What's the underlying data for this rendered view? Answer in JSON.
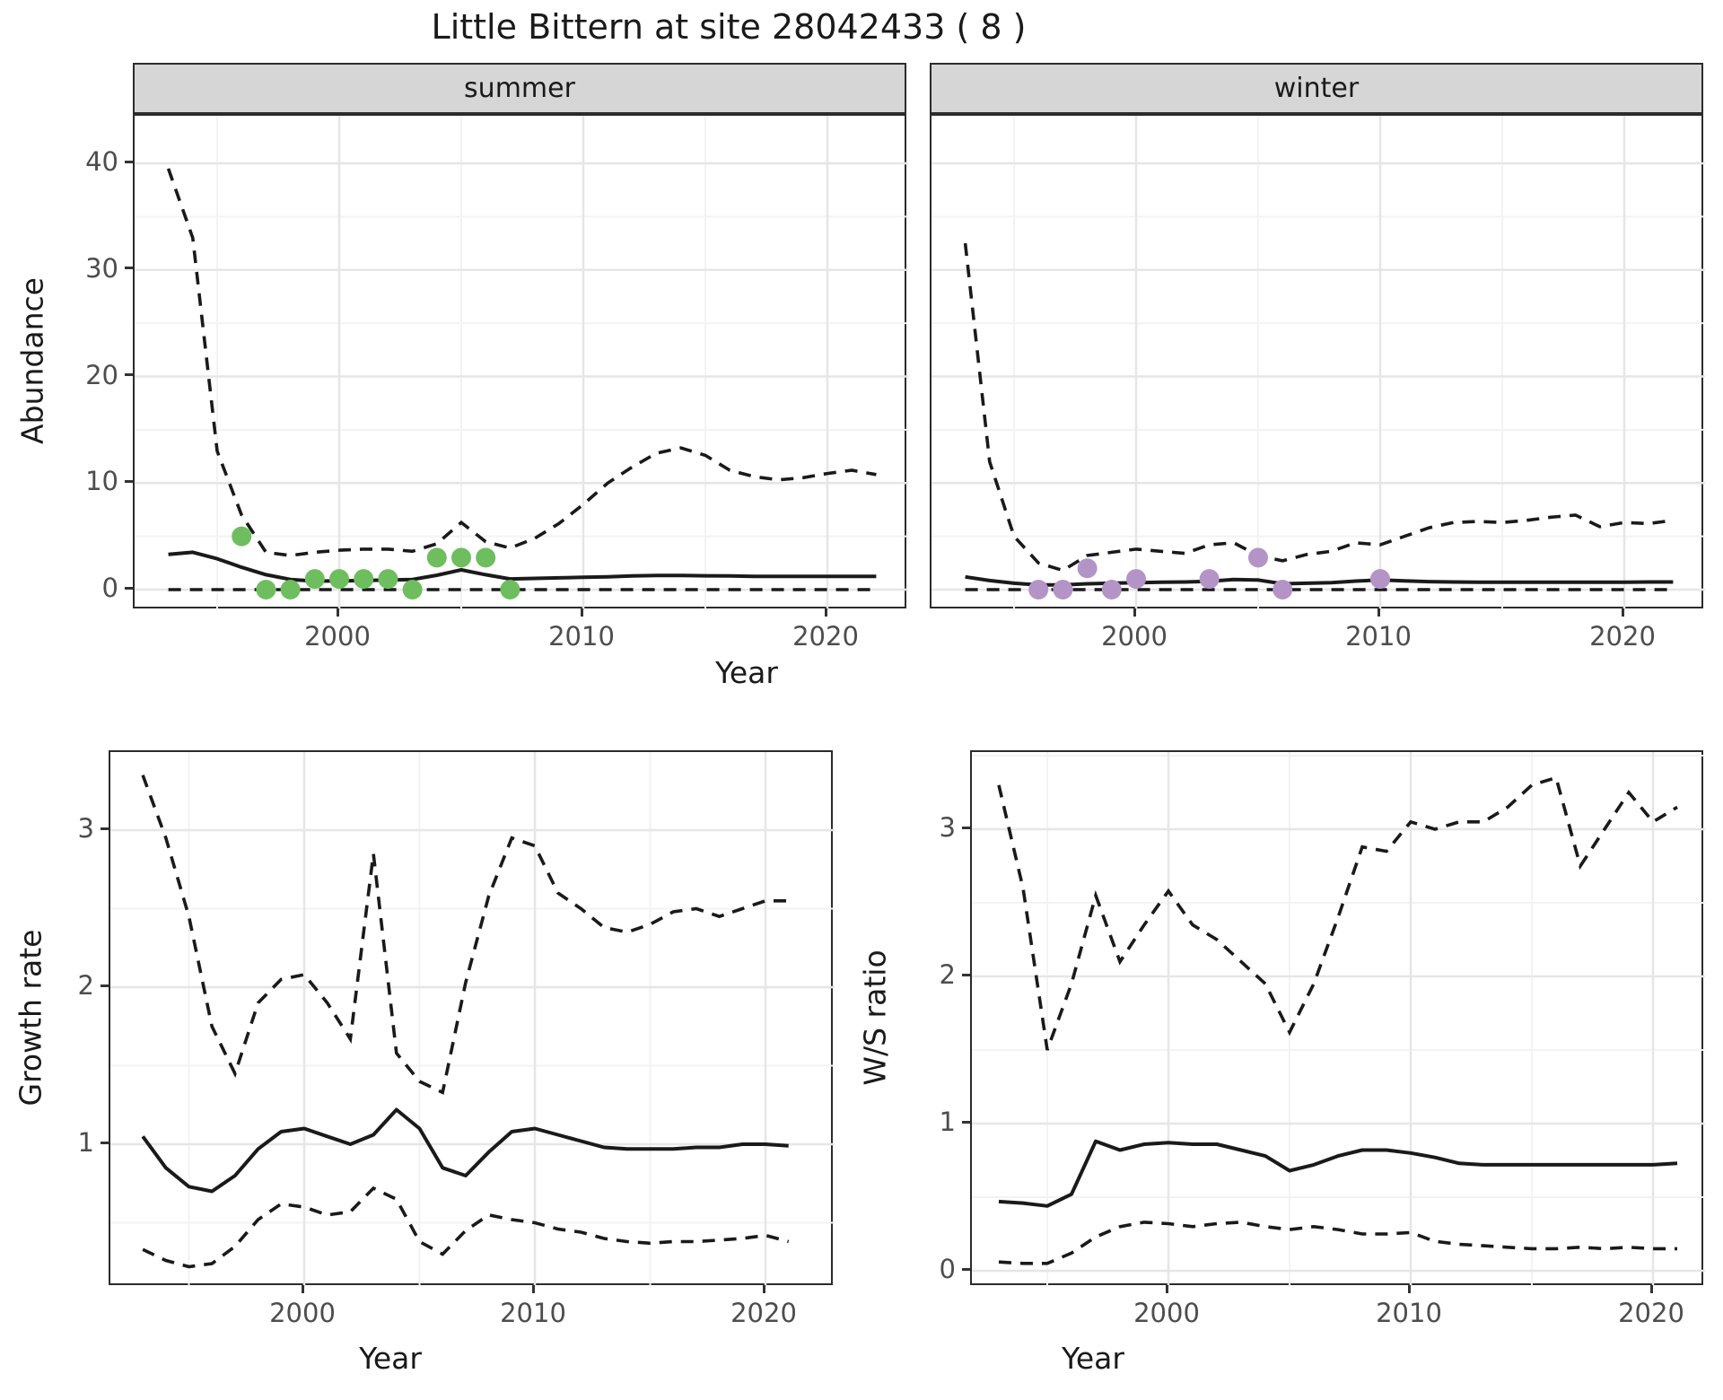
{
  "title": "Little Bittern at site 28042433 ( 8 )",
  "colors": {
    "summer_point": "#6ebe5f",
    "winter_point": "#b494c6",
    "line": "#1a1a1a",
    "strip_bg": "#d6d6d6",
    "grid_major": "#e6e6e6",
    "grid_minor": "#f3f3f3",
    "panel_border": "#2b2b2b",
    "axis_text": "#4d4d4d"
  },
  "chart_data": [
    {
      "type": "line",
      "id": "abundance-summer",
      "strip_label": "summer",
      "xlabel": "Year",
      "ylabel": "Abundance",
      "x_ticks": [
        "2000",
        "2010",
        "2020"
      ],
      "y_ticks": [
        "0",
        "10",
        "20",
        "30",
        "40"
      ],
      "xlim": [
        1991.5,
        2023.5
      ],
      "ylim": [
        0,
        44
      ],
      "grid": "on",
      "years": [
        1993,
        1994,
        1995,
        1996,
        1997,
        1998,
        1999,
        2000,
        2001,
        2002,
        2003,
        2004,
        2005,
        2006,
        2007,
        2008,
        2009,
        2010,
        2011,
        2012,
        2013,
        2014,
        2015,
        2016,
        2017,
        2018,
        2019,
        2020,
        2021,
        2022
      ],
      "median": [
        3.3,
        3.5,
        2.9,
        2.1,
        1.4,
        0.95,
        0.8,
        0.82,
        0.85,
        0.9,
        0.95,
        1.35,
        1.85,
        1.4,
        1.0,
        1.05,
        1.1,
        1.15,
        1.2,
        1.28,
        1.32,
        1.33,
        1.3,
        1.28,
        1.25,
        1.25,
        1.25,
        1.25,
        1.25,
        1.25
      ],
      "upper_ci": [
        39.5,
        33,
        13,
        7,
        3.5,
        3.2,
        3.5,
        3.7,
        3.8,
        3.8,
        3.6,
        4.3,
        6.3,
        4.5,
        3.9,
        4.8,
        6.2,
        8.0,
        10.0,
        11.5,
        12.8,
        13.3,
        12.6,
        11.2,
        10.6,
        10.3,
        10.5,
        10.9,
        11.2,
        10.8
      ],
      "lower_ci": [
        0,
        0,
        0,
        0,
        0,
        0,
        0,
        0,
        0,
        0,
        0,
        0,
        0,
        0,
        0,
        0,
        0,
        0,
        0,
        0,
        0,
        0,
        0,
        0,
        0,
        0,
        0,
        0,
        0,
        0
      ],
      "observations": {
        "years": [
          1996,
          1997,
          1998,
          1999,
          2000,
          2001,
          2002,
          2003,
          2004,
          2005,
          2006,
          2007
        ],
        "values": [
          5,
          0,
          0,
          1,
          1,
          1,
          1,
          0,
          3,
          3,
          3,
          0
        ]
      },
      "point_color": "#6ebe5f"
    },
    {
      "type": "line",
      "id": "abundance-winter",
      "strip_label": "winter",
      "xlabel": "Year",
      "ylabel": "Abundance",
      "x_ticks": [
        "2000",
        "2010",
        "2020"
      ],
      "y_ticks": [
        "0",
        "10",
        "20",
        "30",
        "40"
      ],
      "xlim": [
        1991.5,
        2023.5
      ],
      "ylim": [
        0,
        44
      ],
      "grid": "on",
      "years": [
        1993,
        1994,
        1995,
        1996,
        1997,
        1998,
        1999,
        2000,
        2001,
        2002,
        2003,
        2004,
        2005,
        2006,
        2007,
        2008,
        2009,
        2010,
        2011,
        2012,
        2013,
        2014,
        2015,
        2016,
        2017,
        2018,
        2019,
        2020,
        2021,
        2022
      ],
      "median": [
        1.2,
        0.85,
        0.6,
        0.45,
        0.45,
        0.55,
        0.6,
        0.65,
        0.7,
        0.72,
        0.78,
        0.95,
        0.9,
        0.55,
        0.6,
        0.65,
        0.8,
        0.9,
        0.82,
        0.75,
        0.72,
        0.7,
        0.7,
        0.7,
        0.7,
        0.7,
        0.7,
        0.7,
        0.72,
        0.72
      ],
      "upper_ci": [
        32.5,
        12,
        5,
        2.5,
        1.8,
        3.2,
        3.5,
        3.8,
        3.6,
        3.4,
        4.2,
        4.4,
        3.2,
        2.7,
        3.3,
        3.6,
        4.4,
        4.2,
        5.0,
        5.8,
        6.3,
        6.4,
        6.3,
        6.5,
        6.8,
        7.0,
        5.9,
        6.3,
        6.2,
        6.5
      ],
      "lower_ci": [
        0,
        0,
        0,
        0,
        0,
        0,
        0,
        0,
        0,
        0,
        0,
        0,
        0,
        0,
        0,
        0,
        0,
        0,
        0,
        0,
        0,
        0,
        0,
        0,
        0,
        0,
        0,
        0,
        0,
        0
      ],
      "observations": {
        "years": [
          1996,
          1997,
          1998,
          1999,
          2000,
          2003,
          2005,
          2006,
          2010
        ],
        "values": [
          0,
          0,
          2,
          0,
          1,
          1,
          3,
          0,
          1
        ]
      },
      "point_color": "#b494c6"
    },
    {
      "type": "line",
      "id": "growth-rate",
      "strip_label": "",
      "xlabel": "Year",
      "ylabel": "Growth rate",
      "x_ticks": [
        "2000",
        "2010",
        "2020"
      ],
      "y_ticks": [
        "1",
        "2",
        "3"
      ],
      "xlim": [
        1991.6,
        2023.0
      ],
      "ylim": [
        0.09,
        3.5
      ],
      "grid": "on",
      "years": [
        1993,
        1994,
        1995,
        1996,
        1997,
        1998,
        1999,
        2000,
        2001,
        2002,
        2003,
        2004,
        2005,
        2006,
        2007,
        2008,
        2009,
        2010,
        2011,
        2012,
        2013,
        2014,
        2015,
        2016,
        2017,
        2018,
        2019,
        2020,
        2021
      ],
      "median": [
        1.05,
        0.85,
        0.73,
        0.7,
        0.8,
        0.97,
        1.08,
        1.1,
        1.05,
        1.0,
        1.06,
        1.22,
        1.1,
        0.85,
        0.8,
        0.95,
        1.08,
        1.1,
        1.06,
        1.02,
        0.98,
        0.97,
        0.97,
        0.97,
        0.98,
        0.98,
        1.0,
        1.0,
        0.99
      ],
      "upper_ci": [
        3.35,
        2.95,
        2.45,
        1.75,
        1.45,
        1.9,
        2.05,
        2.08,
        1.9,
        1.67,
        2.85,
        1.58,
        1.4,
        1.33,
        2.03,
        2.58,
        2.95,
        2.9,
        2.6,
        2.5,
        2.38,
        2.35,
        2.4,
        2.48,
        2.5,
        2.45,
        2.5,
        2.55,
        2.55
      ],
      "lower_ci": [
        0.33,
        0.26,
        0.22,
        0.24,
        0.35,
        0.52,
        0.62,
        0.6,
        0.55,
        0.57,
        0.72,
        0.65,
        0.38,
        0.3,
        0.45,
        0.55,
        0.52,
        0.5,
        0.46,
        0.44,
        0.4,
        0.38,
        0.37,
        0.38,
        0.38,
        0.39,
        0.4,
        0.42,
        0.38
      ],
      "observations": {
        "years": [],
        "values": []
      },
      "point_color": "#6ebe5f"
    },
    {
      "type": "line",
      "id": "ws-ratio",
      "strip_label": "",
      "xlabel": "Year",
      "ylabel": "W/S ratio",
      "x_ticks": [
        "2000",
        "2010",
        "2020"
      ],
      "y_ticks": [
        "0",
        "1",
        "2",
        "3"
      ],
      "xlim": [
        1991.9,
        2022.3
      ],
      "ylim": [
        -0.1,
        3.5
      ],
      "grid": "on",
      "years": [
        1993,
        1994,
        1995,
        1996,
        1997,
        1998,
        1999,
        2000,
        2001,
        2002,
        2003,
        2004,
        2005,
        2006,
        2007,
        2008,
        2009,
        2010,
        2011,
        2012,
        2013,
        2014,
        2015,
        2016,
        2017,
        2018,
        2019,
        2020,
        2021
      ],
      "median": [
        0.47,
        0.46,
        0.44,
        0.52,
        0.88,
        0.82,
        0.86,
        0.87,
        0.86,
        0.86,
        0.82,
        0.78,
        0.68,
        0.72,
        0.78,
        0.82,
        0.82,
        0.8,
        0.77,
        0.73,
        0.72,
        0.72,
        0.72,
        0.72,
        0.72,
        0.72,
        0.72,
        0.72,
        0.73
      ],
      "upper_ci": [
        3.3,
        2.6,
        1.5,
        1.95,
        2.55,
        2.1,
        2.35,
        2.58,
        2.35,
        2.25,
        2.1,
        1.95,
        1.62,
        1.95,
        2.4,
        2.88,
        2.85,
        3.05,
        3.0,
        3.05,
        3.05,
        3.15,
        3.3,
        3.35,
        2.75,
        3.0,
        3.25,
        3.05,
        3.15
      ],
      "lower_ci": [
        0.06,
        0.05,
        0.05,
        0.12,
        0.23,
        0.3,
        0.33,
        0.32,
        0.3,
        0.32,
        0.33,
        0.3,
        0.28,
        0.3,
        0.28,
        0.25,
        0.25,
        0.26,
        0.2,
        0.18,
        0.17,
        0.16,
        0.15,
        0.15,
        0.16,
        0.15,
        0.16,
        0.15,
        0.15
      ],
      "observations": {
        "years": [],
        "values": []
      },
      "point_color": "#b494c6"
    }
  ]
}
